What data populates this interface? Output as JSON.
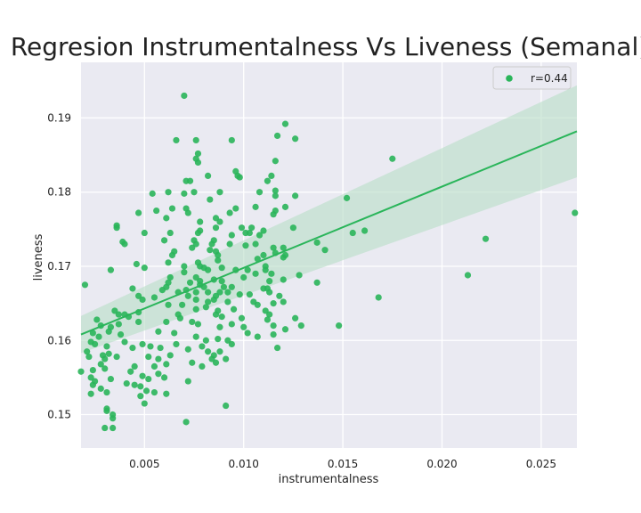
{
  "chart_data": {
    "type": "scatter",
    "title": "Regresion Instrumentalness Vs Liveness (Semanal)",
    "xlabel": "instrumentalness",
    "ylabel": "liveness",
    "xlim": [
      0.0018,
      0.0268
    ],
    "ylim": [
      0.1455,
      0.1975
    ],
    "xticks": [
      0.005,
      0.01,
      0.015,
      0.02,
      0.025
    ],
    "xtick_labels": [
      "0.005",
      "0.010",
      "0.015",
      "0.020",
      "0.025"
    ],
    "yticks": [
      0.15,
      0.16,
      0.17,
      0.18,
      0.19
    ],
    "ytick_labels": [
      "0.15",
      "0.16",
      "0.17",
      "0.18",
      "0.19"
    ],
    "grid": true,
    "background": "#eaeaf2",
    "point_color": "#2ab55a",
    "line_color": "#2ab55a",
    "band_color": "#b7ddc6",
    "legend": {
      "position": "top-right",
      "entries": [
        "r=0.44"
      ]
    },
    "regression": {
      "x": [
        0.0018,
        0.0268
      ],
      "y": [
        0.1608,
        0.1882
      ],
      "ci_lower": [
        0.1583,
        0.182
      ],
      "ci_upper": [
        0.1633,
        0.1944
      ]
    },
    "points": [
      [
        0.007,
        0.193
      ],
      [
        0.0121,
        0.1892
      ],
      [
        0.0117,
        0.1876
      ],
      [
        0.0126,
        0.1872
      ],
      [
        0.0066,
        0.187
      ],
      [
        0.0076,
        0.187
      ],
      [
        0.0094,
        0.187
      ],
      [
        0.0077,
        0.1852
      ],
      [
        0.0076,
        0.1845
      ],
      [
        0.0077,
        0.184
      ],
      [
        0.0116,
        0.1842
      ],
      [
        0.0175,
        0.1845
      ],
      [
        0.0096,
        0.1828
      ],
      [
        0.0097,
        0.1822
      ],
      [
        0.0098,
        0.182
      ],
      [
        0.0082,
        0.1822
      ],
      [
        0.0071,
        0.1815
      ],
      [
        0.0073,
        0.1815
      ],
      [
        0.0112,
        0.1815
      ],
      [
        0.0114,
        0.1822
      ],
      [
        0.0054,
        0.1798
      ],
      [
        0.0062,
        0.18
      ],
      [
        0.007,
        0.1798
      ],
      [
        0.0075,
        0.18
      ],
      [
        0.0088,
        0.18
      ],
      [
        0.0108,
        0.18
      ],
      [
        0.0116,
        0.1802
      ],
      [
        0.0116,
        0.1795
      ],
      [
        0.0126,
        0.1795
      ],
      [
        0.0152,
        0.1792
      ],
      [
        0.0083,
        0.179
      ],
      [
        0.0071,
        0.1778
      ],
      [
        0.0072,
        0.1772
      ],
      [
        0.0064,
        0.1778
      ],
      [
        0.0056,
        0.1775
      ],
      [
        0.0047,
        0.1772
      ],
      [
        0.0093,
        0.1772
      ],
      [
        0.0096,
        0.1778
      ],
      [
        0.0106,
        0.178
      ],
      [
        0.0116,
        0.1775
      ],
      [
        0.0121,
        0.178
      ],
      [
        0.0115,
        0.177
      ],
      [
        0.0061,
        0.1765
      ],
      [
        0.0078,
        0.176
      ],
      [
        0.0086,
        0.1765
      ],
      [
        0.0088,
        0.176
      ],
      [
        0.0036,
        0.1755
      ],
      [
        0.0036,
        0.1752
      ],
      [
        0.0099,
        0.1752
      ],
      [
        0.0104,
        0.1752
      ],
      [
        0.0125,
        0.1752
      ],
      [
        0.011,
        0.1748
      ],
      [
        0.0078,
        0.1748
      ],
      [
        0.0086,
        0.1752
      ],
      [
        0.0155,
        0.1745
      ],
      [
        0.0161,
        0.1748
      ],
      [
        0.005,
        0.1745
      ],
      [
        0.0063,
        0.1745
      ],
      [
        0.0077,
        0.1745
      ],
      [
        0.0094,
        0.1742
      ],
      [
        0.0101,
        0.1745
      ],
      [
        0.0103,
        0.1745
      ],
      [
        0.0108,
        0.1742
      ],
      [
        0.0222,
        0.1737
      ],
      [
        0.0039,
        0.1733
      ],
      [
        0.004,
        0.173
      ],
      [
        0.006,
        0.1735
      ],
      [
        0.0075,
        0.1735
      ],
      [
        0.0076,
        0.173
      ],
      [
        0.0084,
        0.173
      ],
      [
        0.0085,
        0.1735
      ],
      [
        0.0093,
        0.173
      ],
      [
        0.0101,
        0.1728
      ],
      [
        0.0106,
        0.173
      ],
      [
        0.0115,
        0.1725
      ],
      [
        0.012,
        0.1725
      ],
      [
        0.0137,
        0.1732
      ],
      [
        0.0141,
        0.1722
      ],
      [
        0.0074,
        0.1725
      ],
      [
        0.0083,
        0.1722
      ],
      [
        0.0065,
        0.172
      ],
      [
        0.0064,
        0.1715
      ],
      [
        0.0086,
        0.172
      ],
      [
        0.0087,
        0.1715
      ],
      [
        0.011,
        0.1715
      ],
      [
        0.0116,
        0.1718
      ],
      [
        0.012,
        0.1712
      ],
      [
        0.0121,
        0.1715
      ],
      [
        0.0107,
        0.171
      ],
      [
        0.0087,
        0.1708
      ],
      [
        0.0077,
        0.1705
      ],
      [
        0.0046,
        0.1703
      ],
      [
        0.005,
        0.1698
      ],
      [
        0.0062,
        0.1705
      ],
      [
        0.007,
        0.17
      ],
      [
        0.0078,
        0.17
      ],
      [
        0.008,
        0.1698
      ],
      [
        0.0082,
        0.1695
      ],
      [
        0.0089,
        0.1698
      ],
      [
        0.0096,
        0.1695
      ],
      [
        0.0102,
        0.1695
      ],
      [
        0.0111,
        0.17
      ],
      [
        0.0111,
        0.1695
      ],
      [
        0.0114,
        0.169
      ],
      [
        0.0033,
        0.1695
      ],
      [
        0.007,
        0.1692
      ],
      [
        0.0106,
        0.169
      ],
      [
        0.0128,
        0.1688
      ],
      [
        0.0213,
        0.1688
      ],
      [
        0.0063,
        0.1685
      ],
      [
        0.0076,
        0.1685
      ],
      [
        0.0078,
        0.168
      ],
      [
        0.0085,
        0.1682
      ],
      [
        0.0089,
        0.168
      ],
      [
        0.01,
        0.1685
      ],
      [
        0.0113,
        0.168
      ],
      [
        0.012,
        0.1682
      ],
      [
        0.0137,
        0.1678
      ],
      [
        0.0062,
        0.1678
      ],
      [
        0.0073,
        0.1678
      ],
      [
        0.0078,
        0.1675
      ],
      [
        0.008,
        0.1672
      ],
      [
        0.009,
        0.1672
      ],
      [
        0.0094,
        0.1672
      ],
      [
        0.011,
        0.167
      ],
      [
        0.0112,
        0.167
      ],
      [
        0.0044,
        0.167
      ],
      [
        0.0059,
        0.1668
      ],
      [
        0.0061,
        0.1672
      ],
      [
        0.0067,
        0.1665
      ],
      [
        0.0071,
        0.1668
      ],
      [
        0.0076,
        0.1665
      ],
      [
        0.0082,
        0.1665
      ],
      [
        0.0086,
        0.166
      ],
      [
        0.0088,
        0.1665
      ],
      [
        0.0092,
        0.1665
      ],
      [
        0.0098,
        0.1662
      ],
      [
        0.0103,
        0.1662
      ],
      [
        0.0113,
        0.1665
      ],
      [
        0.0118,
        0.166
      ],
      [
        0.0168,
        0.1658
      ],
      [
        0.0047,
        0.166
      ],
      [
        0.0049,
        0.1655
      ],
      [
        0.0055,
        0.1658
      ],
      [
        0.0072,
        0.166
      ],
      [
        0.0076,
        0.1655
      ],
      [
        0.0082,
        0.1652
      ],
      [
        0.0085,
        0.1655
      ],
      [
        0.0092,
        0.1652
      ],
      [
        0.0105,
        0.1652
      ],
      [
        0.0107,
        0.1648
      ],
      [
        0.0115,
        0.165
      ],
      [
        0.012,
        0.1652
      ],
      [
        0.0062,
        0.1648
      ],
      [
        0.0069,
        0.1648
      ],
      [
        0.0076,
        0.1642
      ],
      [
        0.0081,
        0.1645
      ],
      [
        0.0087,
        0.164
      ],
      [
        0.0095,
        0.1642
      ],
      [
        0.0111,
        0.164
      ],
      [
        0.0035,
        0.164
      ],
      [
        0.0037,
        0.1635
      ],
      [
        0.004,
        0.1635
      ],
      [
        0.0042,
        0.1632
      ],
      [
        0.0047,
        0.1638
      ],
      [
        0.0067,
        0.1635
      ],
      [
        0.0068,
        0.163
      ],
      [
        0.0086,
        0.1635
      ],
      [
        0.0089,
        0.1632
      ],
      [
        0.0099,
        0.163
      ],
      [
        0.0112,
        0.1628
      ],
      [
        0.0113,
        0.1635
      ],
      [
        0.0126,
        0.163
      ],
      [
        0.0026,
        0.1628
      ],
      [
        0.0028,
        0.162
      ],
      [
        0.0033,
        0.1618
      ],
      [
        0.0037,
        0.1622
      ],
      [
        0.0047,
        0.1625
      ],
      [
        0.0061,
        0.1625
      ],
      [
        0.0074,
        0.1625
      ],
      [
        0.0077,
        0.1622
      ],
      [
        0.0088,
        0.1618
      ],
      [
        0.0094,
        0.1622
      ],
      [
        0.01,
        0.1618
      ],
      [
        0.0115,
        0.162
      ],
      [
        0.0121,
        0.1615
      ],
      [
        0.0129,
        0.162
      ],
      [
        0.0148,
        0.162
      ],
      [
        0.0024,
        0.161
      ],
      [
        0.0027,
        0.1605
      ],
      [
        0.0032,
        0.1612
      ],
      [
        0.0038,
        0.1608
      ],
      [
        0.0057,
        0.1612
      ],
      [
        0.0065,
        0.161
      ],
      [
        0.0076,
        0.1605
      ],
      [
        0.0081,
        0.16
      ],
      [
        0.0087,
        0.1602
      ],
      [
        0.0092,
        0.16
      ],
      [
        0.0094,
        0.1595
      ],
      [
        0.0102,
        0.161
      ],
      [
        0.0107,
        0.1605
      ],
      [
        0.0115,
        0.1608
      ],
      [
        0.0023,
        0.1598
      ],
      [
        0.0025,
        0.1595
      ],
      [
        0.0031,
        0.1592
      ],
      [
        0.004,
        0.1598
      ],
      [
        0.0044,
        0.159
      ],
      [
        0.0049,
        0.1595
      ],
      [
        0.0053,
        0.1592
      ],
      [
        0.0058,
        0.159
      ],
      [
        0.0066,
        0.1595
      ],
      [
        0.0072,
        0.1588
      ],
      [
        0.0079,
        0.1592
      ],
      [
        0.0082,
        0.1585
      ],
      [
        0.0085,
        0.158
      ],
      [
        0.0088,
        0.1585
      ],
      [
        0.0117,
        0.159
      ],
      [
        0.0021,
        0.1585
      ],
      [
        0.0022,
        0.1578
      ],
      [
        0.0029,
        0.158
      ],
      [
        0.003,
        0.1575
      ],
      [
        0.0032,
        0.1582
      ],
      [
        0.0036,
        0.1578
      ],
      [
        0.0052,
        0.1578
      ],
      [
        0.0057,
        0.1575
      ],
      [
        0.0063,
        0.158
      ],
      [
        0.0084,
        0.1575
      ],
      [
        0.0086,
        0.157
      ],
      [
        0.0091,
        0.1575
      ],
      [
        0.0028,
        0.1568
      ],
      [
        0.0045,
        0.1565
      ],
      [
        0.0055,
        0.1565
      ],
      [
        0.0061,
        0.1568
      ],
      [
        0.0074,
        0.157
      ],
      [
        0.0079,
        0.1565
      ],
      [
        0.0024,
        0.156
      ],
      [
        0.003,
        0.1562
      ],
      [
        0.0043,
        0.1558
      ],
      [
        0.0049,
        0.1552
      ],
      [
        0.0052,
        0.1548
      ],
      [
        0.0057,
        0.1555
      ],
      [
        0.006,
        0.155
      ],
      [
        0.0018,
        0.1558
      ],
      [
        0.0023,
        0.155
      ],
      [
        0.0025,
        0.1545
      ],
      [
        0.0033,
        0.1548
      ],
      [
        0.0041,
        0.1542
      ],
      [
        0.0045,
        0.154
      ],
      [
        0.0048,
        0.1538
      ],
      [
        0.0051,
        0.1532
      ],
      [
        0.0055,
        0.153
      ],
      [
        0.0061,
        0.1528
      ],
      [
        0.0072,
        0.1545
      ],
      [
        0.0024,
        0.154
      ],
      [
        0.0028,
        0.1535
      ],
      [
        0.0031,
        0.153
      ],
      [
        0.0048,
        0.1525
      ],
      [
        0.0023,
        0.1528
      ],
      [
        0.005,
        0.1515
      ],
      [
        0.0091,
        0.1512
      ],
      [
        0.0031,
        0.1508
      ],
      [
        0.0031,
        0.1505
      ],
      [
        0.0034,
        0.15
      ],
      [
        0.0034,
        0.1495
      ],
      [
        0.0071,
        0.149
      ],
      [
        0.003,
        0.1482
      ],
      [
        0.0034,
        0.1482
      ],
      [
        0.0267,
        0.1772
      ],
      [
        0.002,
        0.1675
      ]
    ]
  }
}
